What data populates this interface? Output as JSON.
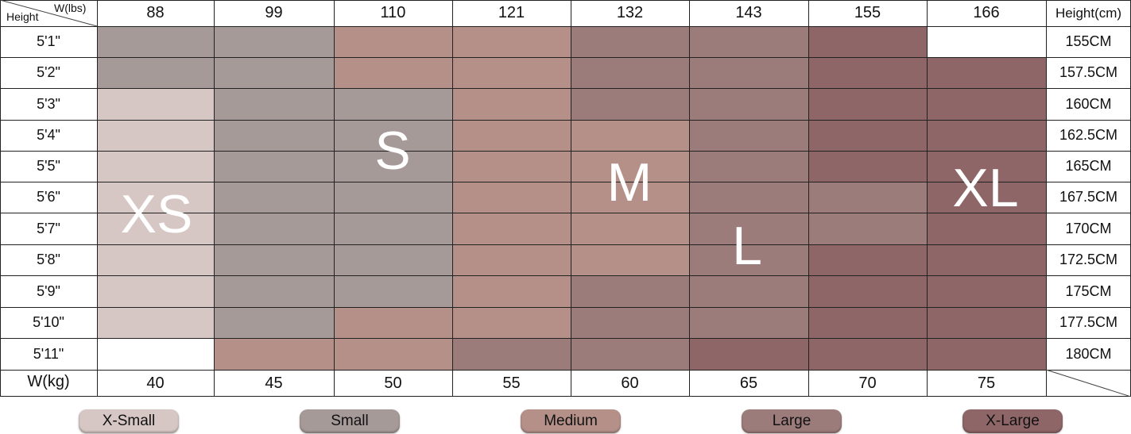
{
  "header": {
    "corner_top": "W(lbs)",
    "corner_bottom": "Height",
    "right_title": "Height(cm)",
    "weights_lbs": [
      "88",
      "99",
      "110",
      "121",
      "132",
      "143",
      "155",
      "166"
    ]
  },
  "heights_ft": [
    "5'1\"",
    "5'2\"",
    "5'3\"",
    "5'4\"",
    "5'5\"",
    "5'6\"",
    "5'7\"",
    "5'8\"",
    "5'9\"",
    "5'10\"",
    "5'11\""
  ],
  "heights_cm": [
    "155CM",
    "157.5CM",
    "160CM",
    "162.5CM",
    "165CM",
    "167.5CM",
    "170CM",
    "172.5CM",
    "175CM",
    "177.5CM",
    "180CM"
  ],
  "footer": {
    "label": "W(kg)",
    "weights_kg": [
      "40",
      "45",
      "50",
      "55",
      "60",
      "65",
      "70",
      "75"
    ]
  },
  "sizes": {
    "XS": {
      "label": "XS",
      "legend": "X-Small",
      "color": "#d6c7c4"
    },
    "S": {
      "label": "S",
      "legend": "Small",
      "color": "#a69a98"
    },
    "M": {
      "label": "M",
      "legend": "Medium",
      "color": "#b59089"
    },
    "L": {
      "label": "L",
      "legend": "Large",
      "color": "#9c7c7b"
    },
    "XL": {
      "label": "XL",
      "legend": "X-Large",
      "color": "#8f6667"
    }
  },
  "grid_sizes": [
    [
      "S",
      "S",
      "M",
      "M",
      "L",
      "L",
      "XL",
      ""
    ],
    [
      "S",
      "S",
      "M",
      "M",
      "L",
      "L",
      "XL",
      "XL"
    ],
    [
      "XS",
      "S",
      "S",
      "M",
      "L",
      "L",
      "XL",
      "XL"
    ],
    [
      "XS",
      "S",
      "S",
      "M",
      "M",
      "L",
      "XL",
      "XL"
    ],
    [
      "XS",
      "S",
      "S",
      "M",
      "M",
      "L",
      "XL",
      "XL"
    ],
    [
      "XS",
      "S",
      "S",
      "M",
      "M",
      "L",
      "L",
      "XL"
    ],
    [
      "XS",
      "S",
      "S",
      "M",
      "M",
      "L",
      "L",
      "XL"
    ],
    [
      "XS",
      "S",
      "S",
      "M",
      "M",
      "L",
      "XL",
      "XL"
    ],
    [
      "XS",
      "S",
      "S",
      "M",
      "L",
      "L",
      "XL",
      "XL"
    ],
    [
      "XS",
      "S",
      "M",
      "M",
      "L",
      "L",
      "XL",
      "XL"
    ],
    [
      "",
      "M",
      "M",
      "L",
      "L",
      "XL",
      "XL",
      "XL"
    ]
  ],
  "big_labels": [
    "XS",
    "S",
    "M",
    "L",
    "XL"
  ],
  "legend_order": [
    "XS",
    "S",
    "M",
    "L",
    "XL"
  ]
}
